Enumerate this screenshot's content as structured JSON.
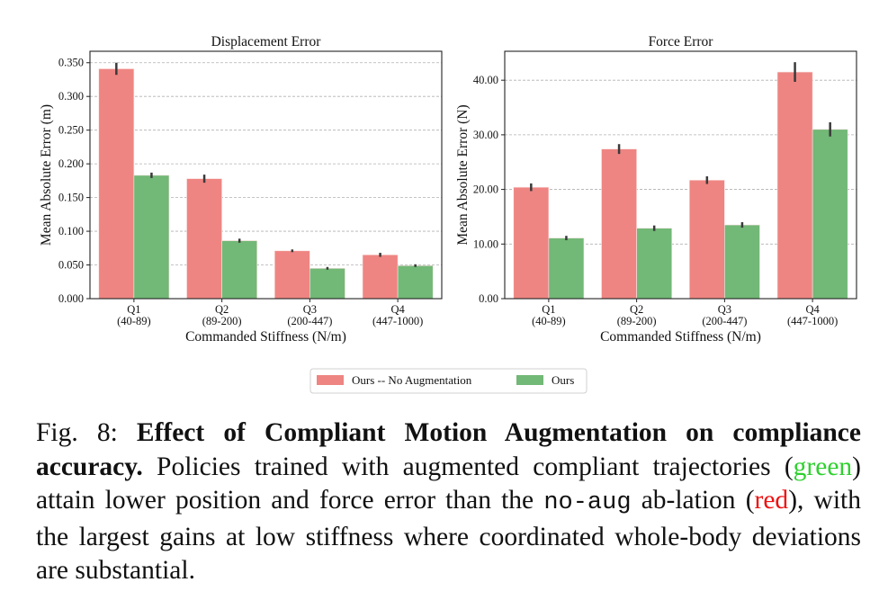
{
  "chart_data": [
    {
      "type": "bar",
      "title": "Displacement Error",
      "xlabel": "Commanded Stiffness (N/m)",
      "ylabel": "Mean Absolute Error (m)",
      "categories": [
        "Q1",
        "Q2",
        "Q3",
        "Q4"
      ],
      "category_ranges": [
        "(40-89)",
        "(89-200)",
        "(200-447)",
        "(447-1000)"
      ],
      "ylim": [
        0,
        0.367
      ],
      "yticks": [
        0,
        0.05,
        0.1,
        0.15,
        0.2,
        0.25,
        0.3,
        0.35
      ],
      "ytick_labels": [
        "0.000",
        "0.050",
        "0.100",
        "0.150",
        "0.200",
        "0.250",
        "0.300",
        "0.350"
      ],
      "grid": true,
      "series": [
        {
          "name": "Ours -- No Augmentation",
          "color": "#ee8582",
          "values": [
            0.341,
            0.178,
            0.071,
            0.065
          ],
          "errors": [
            0.009,
            0.006,
            0.002,
            0.003
          ]
        },
        {
          "name": "Ours",
          "color": "#72b877",
          "values": [
            0.183,
            0.086,
            0.045,
            0.049
          ],
          "errors": [
            0.004,
            0.003,
            0.002,
            0.002
          ]
        }
      ]
    },
    {
      "type": "bar",
      "title": "Force Error",
      "xlabel": "Commanded Stiffness (N/m)",
      "ylabel": "Mean Absolute Error (N)",
      "categories": [
        "Q1",
        "Q2",
        "Q3",
        "Q4"
      ],
      "category_ranges": [
        "(40-89)",
        "(89-200)",
        "(200-447)",
        "(447-1000)"
      ],
      "ylim": [
        0,
        45.3
      ],
      "yticks": [
        0,
        10,
        20,
        30,
        40
      ],
      "ytick_labels": [
        "0.00",
        "10.00",
        "20.00",
        "30.00",
        "40.00"
      ],
      "grid": true,
      "series": [
        {
          "name": "Ours -- No Augmentation",
          "color": "#ee8582",
          "values": [
            20.4,
            27.4,
            21.7,
            41.5
          ],
          "errors": [
            0.7,
            0.9,
            0.7,
            1.8
          ]
        },
        {
          "name": "Ours",
          "color": "#72b877",
          "values": [
            11.1,
            12.9,
            13.5,
            31.0
          ],
          "errors": [
            0.4,
            0.5,
            0.5,
            1.3
          ]
        }
      ]
    }
  ],
  "legend": {
    "placement": "bottom-center",
    "items": [
      "Ours -- No Augmentation",
      "Ours"
    ]
  },
  "caption": {
    "label": "Fig. 8:",
    "bold": "Effect of Compliant Motion Augmentation on compliance accuracy.",
    "t1": "Policies trained with augmented compliant trajectories (",
    "green": "green",
    "t2": ") attain lower position and force error than the",
    "code": "no-aug",
    "t3": "ab-lation (",
    "red": "red",
    "t4": "), with the largest gains at low stiffness where coordinated whole-body deviations are substantial."
  }
}
